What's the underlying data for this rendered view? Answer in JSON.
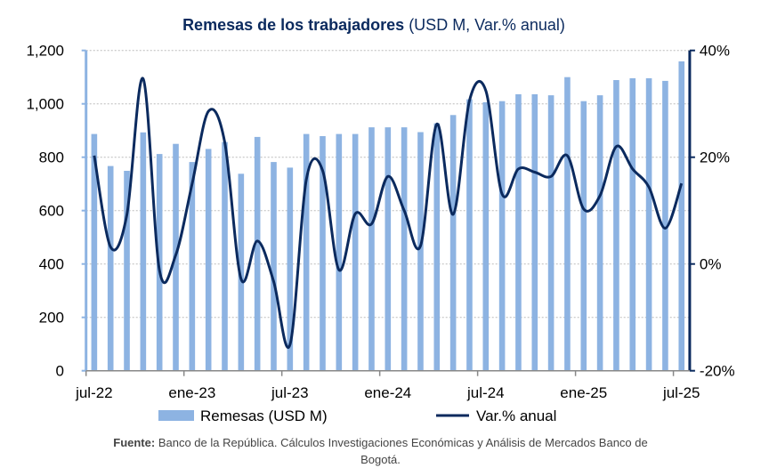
{
  "chart_data": {
    "type": "bar+line",
    "title_bold": "Remesas de los trabajadores",
    "title_rest": " (USD M, Var.% anual)",
    "categories": [
      "jul-22",
      "ago-22",
      "sep-22",
      "oct-22",
      "nov-22",
      "dic-22",
      "ene-23",
      "feb-23",
      "mar-23",
      "abr-23",
      "may-23",
      "jun-23",
      "jul-23",
      "ago-23",
      "sep-23",
      "oct-23",
      "nov-23",
      "dic-23",
      "ene-24",
      "feb-24",
      "mar-24",
      "abr-24",
      "may-24",
      "jun-24",
      "jul-24",
      "ago-24",
      "sep-24",
      "oct-24",
      "nov-24",
      "dic-24",
      "ene-25",
      "feb-25",
      "mar-25",
      "abr-25",
      "may-25",
      "jun-25",
      "jul-25"
    ],
    "x_tick_labels": [
      "jul-22",
      "ene-23",
      "jul-23",
      "ene-24",
      "jul-24",
      "ene-25",
      "jul-25"
    ],
    "series": [
      {
        "name": "Remesas (USD M)",
        "type": "bar",
        "axis": "left",
        "color": "#8db3e2",
        "values": [
          887,
          767,
          749,
          893,
          812,
          850,
          782,
          831,
          857,
          738,
          876,
          782,
          761,
          887,
          879,
          887,
          887,
          912,
          912,
          912,
          894,
          927,
          958,
          1017,
          1006,
          1010,
          1036,
          1036,
          1032,
          1100,
          1010,
          1032,
          1089,
          1096,
          1096,
          1086,
          1159
        ]
      },
      {
        "name": "Var.% anual",
        "type": "line",
        "axis": "right",
        "color": "#0b2a5e",
        "values": [
          20.3,
          3.2,
          9.2,
          34.7,
          -1.2,
          1.7,
          15,
          28.6,
          22.8,
          -2.8,
          4.3,
          -3.3,
          -15.1,
          15.8,
          17.5,
          -1.1,
          9.4,
          7.5,
          16.4,
          10,
          3.4,
          26.2,
          9.3,
          30.6,
          32.5,
          13.1,
          17.8,
          17.2,
          16.4,
          20.3,
          10.3,
          12.8,
          22,
          17.8,
          14.4,
          6.7,
          15.1
        ]
      }
    ],
    "left_axis": {
      "ylim": [
        0,
        1200
      ],
      "ticks": [
        "0",
        "200",
        "400",
        "600",
        "800",
        "1,000",
        "1,200"
      ]
    },
    "right_axis": {
      "ylim": [
        -20,
        40
      ],
      "ticks": [
        "-20%",
        "0%",
        "20%",
        "40%"
      ]
    },
    "grid": true,
    "legend_position": "bottom"
  },
  "source": {
    "label": "Fuente:",
    "text": " Banco de la República. Cálculos Investigaciones Económicas y Análisis de Mercados Banco de",
    "text2": "Bogotá."
  }
}
